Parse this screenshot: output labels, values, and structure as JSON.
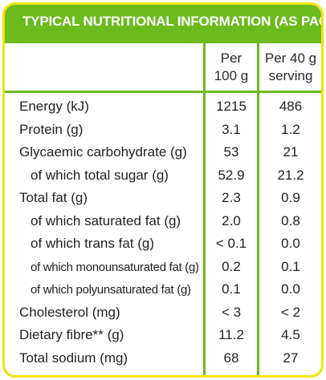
{
  "title": "TYPICAL NUTRITIONAL INFORMATION (AS PACKED)",
  "columns": {
    "per100_line1": "Per",
    "per100_line2": "100 g",
    "perServing_line1": "Per 40 g",
    "perServing_line2": "serving"
  },
  "rows": [
    {
      "label": "Energy (kJ)",
      "per100": "1215",
      "perServing": "486"
    },
    {
      "label": "Protein (g)",
      "per100": "3.1",
      "perServing": "1.2"
    },
    {
      "label": "Glycaemic carbohydrate (g)",
      "per100": "53",
      "perServing": "21"
    },
    {
      "label": "of which total sugar (g)",
      "per100": "52.9",
      "perServing": "21.2"
    },
    {
      "label": "Total fat (g)",
      "per100": "2.3",
      "perServing": "0.9"
    },
    {
      "label": "of which saturated fat (g)",
      "per100": "2.0",
      "perServing": "0.8"
    },
    {
      "label": "of which trans fat (g)",
      "per100": "< 0.1",
      "perServing": "0.0"
    },
    {
      "label": "of which monounsaturated fat (g)",
      "per100": "0.2",
      "perServing": "0.1"
    },
    {
      "label": "of which polyunsaturated fat (g)",
      "per100": "0.1",
      "perServing": "0.0"
    },
    {
      "label": "Cholesterol (mg)",
      "per100": "< 3",
      "perServing": "< 2"
    },
    {
      "label": "Dietary fibre** (g)",
      "per100": "11.2",
      "perServing": "4.5"
    },
    {
      "label": "Total sodium (mg)",
      "per100": "68",
      "perServing": "27"
    }
  ],
  "colors": {
    "header": "#6bbb1e",
    "border": "#f2e300"
  }
}
